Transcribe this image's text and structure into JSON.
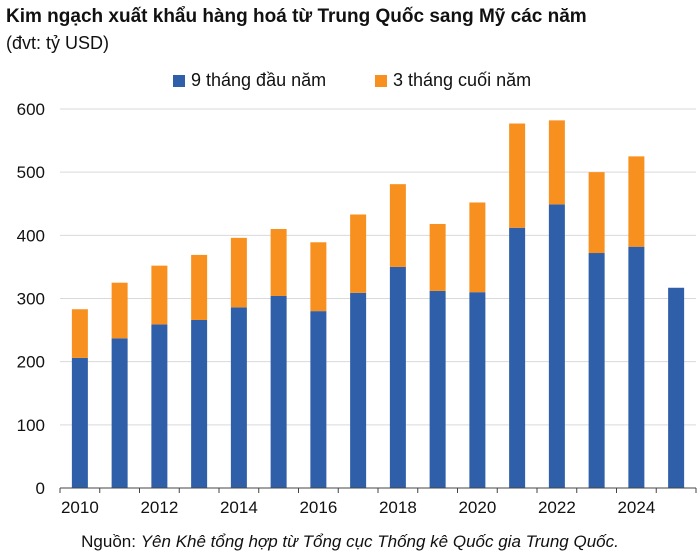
{
  "header": {
    "title": "Kim ngạch xuất khẩu hàng hoá từ Trung Quốc sang Mỹ các năm",
    "subtitle": "(đvt: tỷ USD)"
  },
  "source": {
    "prefix": "Nguồn:",
    "text": "Yên Khê tổng hợp từ Tổng cục Thống kê Quốc gia Trung Quốc."
  },
  "colors": {
    "first9": "#2f5fa8",
    "last3": "#f7901e",
    "grid": "#d9d9d9",
    "axis": "#444444"
  },
  "chart_data": {
    "type": "bar",
    "stacked": true,
    "title": "Kim ngạch xuất khẩu hàng hoá từ Trung Quốc sang Mỹ các năm",
    "ylabel": "(đvt: tỷ USD)",
    "xlabel": "",
    "ylim": [
      0,
      600
    ],
    "yticks": [
      0,
      100,
      200,
      300,
      400,
      500,
      600
    ],
    "categories": [
      "2010",
      "2011",
      "2012",
      "2013",
      "2014",
      "2015",
      "2016",
      "2017",
      "2018",
      "2019",
      "2020",
      "2021",
      "2022",
      "2023",
      "2024",
      "2025"
    ],
    "xtick_labels": [
      "2010",
      "2012",
      "2014",
      "2016",
      "2018",
      "2020",
      "2022",
      "2024"
    ],
    "grid": true,
    "legend_position": "top-center",
    "series": [
      {
        "name": "9 tháng đầu năm",
        "values": [
          206,
          237,
          259,
          266,
          286,
          304,
          280,
          309,
          350,
          312,
          310,
          412,
          449,
          372,
          382,
          317
        ]
      },
      {
        "name": "3 tháng cuối năm",
        "values": [
          77,
          88,
          93,
          103,
          110,
          106,
          109,
          124,
          131,
          106,
          142,
          165,
          133,
          128,
          143,
          0
        ]
      }
    ]
  }
}
